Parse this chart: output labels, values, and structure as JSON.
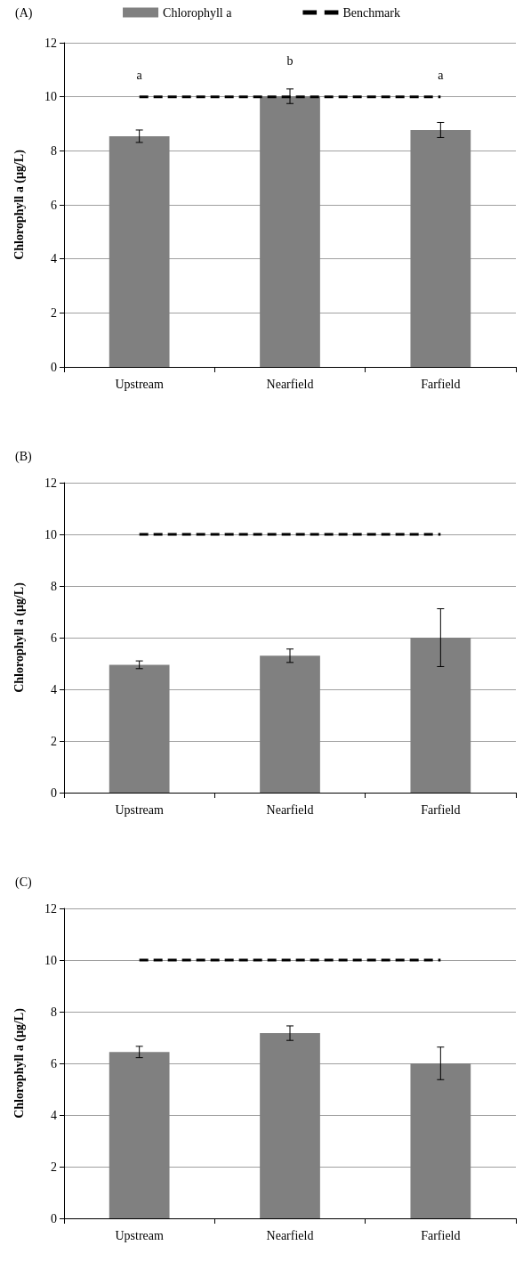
{
  "chart_data": [
    {
      "type": "bar",
      "title": "(A)",
      "ylabel": "Chlorophyll a (µg/L)",
      "categories": [
        "Upstream",
        "Nearfield",
        "Farfield"
      ],
      "series": [
        {
          "name": "Chlorophyll a",
          "color": "#808080",
          "values": [
            8.54,
            10.02,
            8.77
          ],
          "errors": [
            0.23,
            0.27,
            0.28
          ]
        },
        {
          "name": "Benchmark",
          "type": "line",
          "color": "#000000",
          "values": [
            10,
            10,
            10
          ],
          "line_style": "dashed",
          "marker": "none"
        }
      ],
      "ylim": [
        0,
        12
      ],
      "yticks": [
        0,
        2,
        4,
        6,
        8,
        10,
        12
      ],
      "grid": "y",
      "legend": "top",
      "annotations": [
        "a",
        "b",
        "a"
      ]
    },
    {
      "type": "bar",
      "title": "(B)",
      "ylabel": "Chlorophyll a (µg/L)",
      "categories": [
        "Upstream",
        "Nearfield",
        "Farfield"
      ],
      "series": [
        {
          "color": "#808080",
          "values": [
            4.95,
            5.3,
            6.0
          ],
          "errors": [
            0.15,
            0.26,
            1.12
          ]
        },
        {
          "type": "line",
          "color": "#000000",
          "values": [
            10,
            10,
            10
          ],
          "line_style": "dashed",
          "marker": "none"
        }
      ],
      "ylim": [
        0,
        12
      ],
      "yticks": [
        0,
        2,
        4,
        6,
        8,
        10,
        12
      ],
      "grid": "y"
    },
    {
      "type": "bar",
      "title": "(C)",
      "ylabel": "Chlorophyll a (µg/L)",
      "categories": [
        "Upstream",
        "Nearfield",
        "Farfield"
      ],
      "series": [
        {
          "color": "#808080",
          "values": [
            6.44,
            7.17,
            6.0
          ],
          "errors": [
            0.22,
            0.28,
            0.63
          ]
        },
        {
          "type": "line",
          "color": "#000000",
          "values": [
            10,
            10,
            10
          ],
          "line_style": "dashed",
          "marker": "none"
        }
      ],
      "ylim": [
        0,
        12
      ],
      "yticks": [
        0,
        2,
        4,
        6,
        8,
        10,
        12
      ],
      "grid": "y"
    }
  ]
}
